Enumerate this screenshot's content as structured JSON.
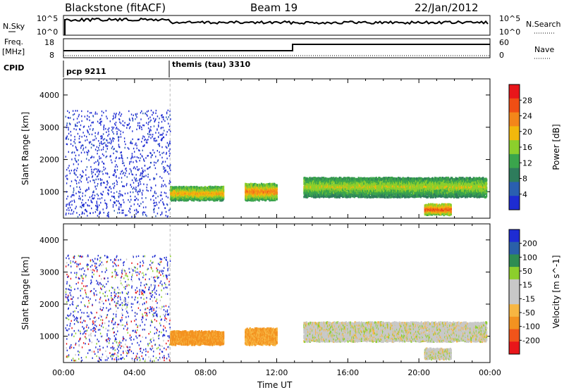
{
  "header": {
    "station": "Blackstone (fitACF)",
    "beam": "Beam 19",
    "date": "22/Jan/2012"
  },
  "panels": {
    "nsky_label": "N.Sky",
    "nsky_ticks": [
      "10^5",
      "10^0"
    ],
    "nsearch_label": "N.Search",
    "nsearch_ticks": [
      "10^5",
      "10^0"
    ],
    "freq_label": "Freq.",
    "freq_unit": "[MHz]",
    "freq_ticks": [
      "18",
      "8"
    ],
    "nave_label": "Nave",
    "nave_ticks": [
      "60",
      "0"
    ],
    "cpid_label": "CPID",
    "cpid_entries": [
      {
        "label": "pcp 9211",
        "start": 0
      },
      {
        "label": "themis (tau) 3310",
        "start": 6
      }
    ]
  },
  "colors": {
    "power": [
      "#1e2cd2",
      "#2a5fb0",
      "#2e7c5c",
      "#3aa54c",
      "#8ccf2c",
      "#f2b80c",
      "#f3861a",
      "#f04e14",
      "#e8161a"
    ],
    "velocity": [
      "#e8161a",
      "#f0541a",
      "#f39220",
      "#f7b642",
      "#c8c8c8",
      "#c8c8c8",
      "#8ccf2c",
      "#2e8c52",
      "#2a60a8",
      "#1e2cd2"
    ],
    "grid": "#000000"
  },
  "chart_data": [
    {
      "type": "heatmap",
      "title": "Power",
      "xlabel": "Time UT",
      "ylabel": "Slant Range [km]",
      "xlim": [
        0,
        24
      ],
      "ylim": [
        180,
        4500
      ],
      "x_ticks": [
        "00:00",
        "04:00",
        "08:00",
        "12:00",
        "16:00",
        "20:00",
        "00:00"
      ],
      "y_ticks": [
        1000,
        2000,
        3000,
        4000
      ],
      "colorbar": {
        "label": "Power [dB]",
        "ticks": [
          "4",
          "8",
          "12",
          "16",
          "20",
          "24",
          "28"
        ],
        "range": [
          0,
          30
        ]
      },
      "regions": [
        {
          "t0": 0.1,
          "t1": 6.0,
          "r0": 250,
          "r1": 3550,
          "level": 6,
          "note": "sparse"
        },
        {
          "t0": 6.0,
          "t1": 9.0,
          "r0": 800,
          "r1": 1200,
          "level": 18
        },
        {
          "t0": 10.2,
          "t1": 12.0,
          "r0": 800,
          "r1": 1300,
          "level": 20
        },
        {
          "t0": 13.5,
          "t1": 23.8,
          "r0": 900,
          "r1": 1500,
          "level": 14
        },
        {
          "t0": 20.3,
          "t1": 21.8,
          "r0": 350,
          "r1": 650,
          "level": 24
        }
      ]
    },
    {
      "type": "heatmap",
      "title": "Velocity",
      "xlabel": "Time UT",
      "ylabel": "Slant Range [km]",
      "xlim": [
        0,
        24
      ],
      "ylim": [
        180,
        4500
      ],
      "x_ticks": [
        "00:00",
        "04:00",
        "08:00",
        "12:00",
        "16:00",
        "20:00",
        "00:00"
      ],
      "y_ticks": [
        1000,
        2000,
        3000,
        4000
      ],
      "colorbar": {
        "label": "Velocity [m s^-1]",
        "ticks": [
          "200",
          "100",
          "50",
          "15",
          "-15",
          "-50",
          "-100",
          "-200"
        ],
        "range": [
          -250,
          250
        ]
      },
      "regions": [
        {
          "t0": 0.1,
          "t1": 6.0,
          "r0": 250,
          "r1": 3550,
          "level": "mixed"
        },
        {
          "t0": 6.0,
          "t1": 9.0,
          "r0": 800,
          "r1": 1200,
          "level": -60
        },
        {
          "t0": 10.2,
          "t1": 12.0,
          "r0": 800,
          "r1": 1300,
          "level": -50
        },
        {
          "t0": 13.5,
          "t1": 23.8,
          "r0": 900,
          "r1": 1500,
          "level": 0
        },
        {
          "t0": 20.3,
          "t1": 21.8,
          "r0": 350,
          "r1": 650,
          "level": 0
        }
      ]
    }
  ]
}
